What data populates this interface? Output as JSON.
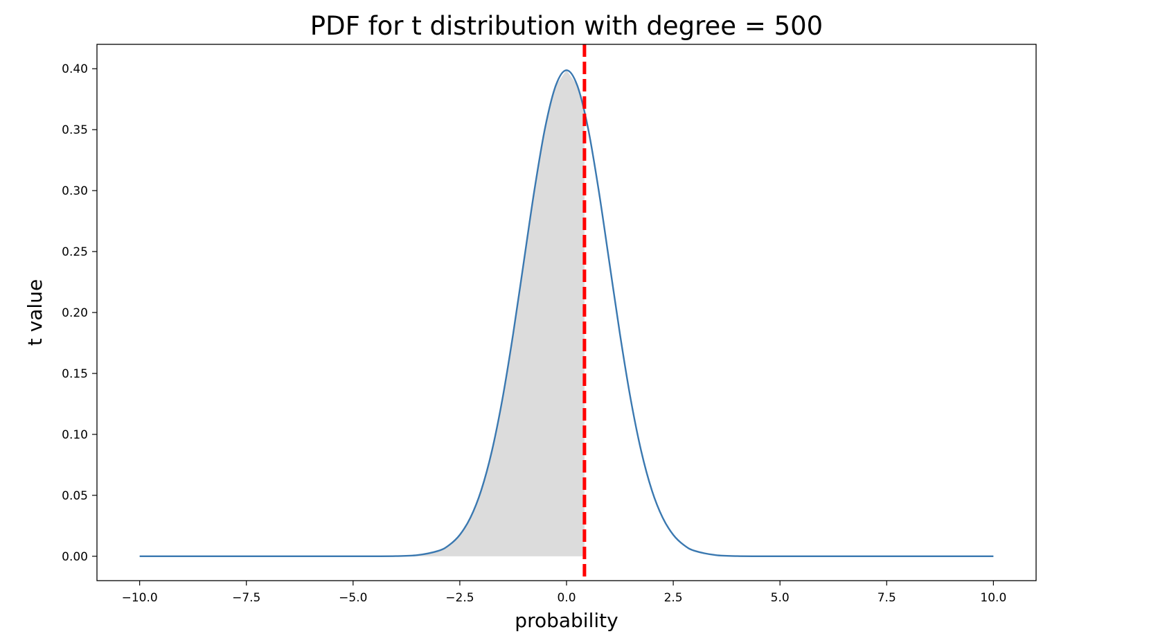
{
  "chart_data": {
    "type": "line",
    "title": "PDF for t distribution with degree = 500",
    "xlabel": "probability",
    "ylabel": "t value",
    "degrees_of_freedom": 500,
    "xlim": [
      -11.0,
      11.0
    ],
    "ylim": [
      -0.02,
      0.42
    ],
    "x_ticks": [
      -10.0,
      -7.5,
      -5.0,
      -2.5,
      0.0,
      2.5,
      5.0,
      7.5,
      10.0
    ],
    "x_tick_labels": [
      "−10.0",
      "−7.5",
      "−5.0",
      "−2.5",
      "0.0",
      "2.5",
      "5.0",
      "7.5",
      "10.0"
    ],
    "y_ticks": [
      0.0,
      0.05,
      0.1,
      0.15,
      0.2,
      0.25,
      0.3,
      0.35,
      0.4
    ],
    "y_tick_labels": [
      "0.00",
      "0.05",
      "0.10",
      "0.15",
      "0.20",
      "0.25",
      "0.30",
      "0.35",
      "0.40"
    ],
    "grid": false,
    "series": [
      {
        "x": [
          -10.0,
          -9.0,
          -8.0,
          -7.0,
          -6.0,
          -5.0,
          -4.5,
          -4.0,
          -3.5,
          -3.0,
          -2.75,
          -2.5,
          -2.25,
          -2.0,
          -1.75,
          -1.5,
          -1.25,
          -1.0,
          -0.75,
          -0.5,
          -0.25,
          0.0,
          0.25,
          0.5,
          0.75,
          1.0,
          1.25,
          1.5,
          1.75,
          2.0,
          2.25,
          2.5,
          2.75,
          3.0,
          3.5,
          4.0,
          4.5,
          5.0,
          6.0,
          7.0,
          8.0,
          9.0,
          10.0
        ],
        "values": [
          0.0,
          0.0,
          0.0,
          0.0,
          0.0,
          0.0,
          2e-05,
          0.00014,
          0.0009,
          0.00448,
          0.00916,
          0.0176,
          0.0318,
          0.054,
          0.0862,
          0.1294,
          0.1826,
          0.2419,
          0.301,
          0.3519,
          0.3864,
          0.3988,
          0.3864,
          0.3519,
          0.301,
          0.2419,
          0.1826,
          0.1294,
          0.0862,
          0.054,
          0.0318,
          0.0176,
          0.00916,
          0.00448,
          0.0009,
          0.00014,
          2e-05,
          0.0,
          0.0,
          0.0,
          0.0,
          0.0,
          0.0
        ],
        "color": "#3a78b0"
      }
    ],
    "shaded_region": {
      "from": -10.0,
      "to": 0.42,
      "color": "#dcdcdc"
    },
    "vline": {
      "x": 0.42,
      "color": "#ff0000",
      "style": "dashed"
    }
  }
}
